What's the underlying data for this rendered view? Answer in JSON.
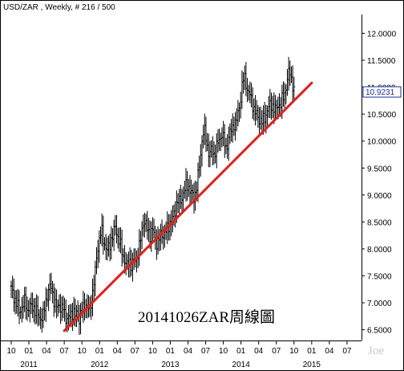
{
  "header": {
    "text": "USD/ZAR , Weekly, # 216 / 500"
  },
  "caption": "20141026ZAR周線圖",
  "signature": "Joe",
  "chart_data": {
    "type": "candlestick",
    "title": "USD/ZAR , Weekly, # 216 / 500",
    "timeframe": "Weekly",
    "xlabel": "",
    "ylabel": "",
    "ylim": [
      6.3,
      12.35
    ],
    "y_axis_position": "right",
    "y_ticks": [
      "6.5000",
      "7.0000",
      "7.5000",
      "8.0000",
      "8.5000",
      "9.0000",
      "9.5000",
      "10.0000",
      "10.5000",
      "11.0000",
      "11.5000",
      "12.0000"
    ],
    "x_ticks": [
      "10",
      "01",
      "04",
      "07",
      "10",
      "01",
      "04",
      "07",
      "10",
      "01",
      "04",
      "07",
      "10",
      "01",
      "04",
      "07",
      "10",
      "01",
      "04",
      "07"
    ],
    "x_years": [
      "2011",
      "2012",
      "2013",
      "2014",
      "2015"
    ],
    "last_value": "10.9231",
    "series": [
      {
        "x_start": "2010-10",
        "x_end": "2014-10",
        "close": [
          7.25,
          7.15,
          7.05,
          6.95,
          6.85,
          6.9,
          6.95,
          7.05,
          6.85,
          6.95,
          6.9,
          6.95,
          6.85,
          6.8,
          6.75,
          6.7,
          6.75,
          7.0,
          7.15,
          7.25,
          7.3,
          7.1,
          6.95,
          6.9,
          7.0,
          6.85,
          6.9,
          6.75,
          6.7,
          6.7,
          6.8,
          6.85,
          6.75,
          6.8,
          6.7,
          6.85,
          6.9,
          7.0,
          6.9,
          6.85,
          7.05,
          7.3,
          7.6,
          8.0,
          8.2,
          8.35,
          8.15,
          8.05,
          7.95,
          8.05,
          8.2,
          8.3,
          8.4,
          8.25,
          8.15,
          7.95,
          7.85,
          7.75,
          7.65,
          7.8,
          7.7,
          7.75,
          7.8,
          7.9,
          8.05,
          8.3,
          8.55,
          8.45,
          8.35,
          8.25,
          8.35,
          8.3,
          8.15,
          8.1,
          8.2,
          8.3,
          8.25,
          8.3,
          8.4,
          8.5,
          8.45,
          8.65,
          8.75,
          8.9,
          8.85,
          8.95,
          9.05,
          9.15,
          9.2,
          9.1,
          9.0,
          8.95,
          9.05,
          9.3,
          9.6,
          10.0,
          10.2,
          10.1,
          9.85,
          9.75,
          9.85,
          9.75,
          9.85,
          9.95,
          10.05,
          10.15,
          10.0,
          9.85,
          10.0,
          10.15,
          10.2,
          10.35,
          10.3,
          10.5,
          10.7,
          11.0,
          11.2,
          11.1,
          10.9,
          10.85,
          10.75,
          10.6,
          10.5,
          10.45,
          10.4,
          10.35,
          10.4,
          10.5,
          10.6,
          10.65,
          10.7,
          10.6,
          10.55,
          10.7,
          10.65,
          10.75,
          10.85,
          11.0,
          11.2,
          11.3,
          11.1,
          10.92
        ]
      }
    ],
    "trendline": {
      "color": "#e31e1e",
      "from": {
        "x": "2011-07",
        "y": 6.48
      },
      "to": {
        "x": "2015-01",
        "y": 11.08
      }
    }
  }
}
